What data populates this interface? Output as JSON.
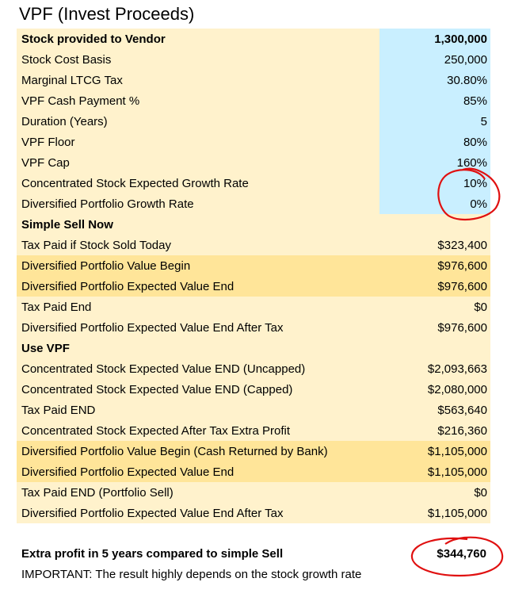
{
  "title": "VPF (Invest Proceeds)",
  "rows": [
    {
      "label": "Stock provided to Vendor",
      "value": "1,300,000",
      "style": "blue",
      "bold": true
    },
    {
      "label": "Stock Cost Basis",
      "value": "250,000",
      "style": "blue",
      "bold": false
    },
    {
      "label": "Marginal LTCG Tax",
      "value": "30.80%",
      "style": "blue",
      "bold": false
    },
    {
      "label": "VPF Cash Payment %",
      "value": "85%",
      "style": "blue",
      "bold": false
    },
    {
      "label": "Duration (Years)",
      "value": "5",
      "style": "blue",
      "bold": false
    },
    {
      "label": "VPF Floor",
      "value": "80%",
      "style": "blue",
      "bold": false
    },
    {
      "label": "VPF Cap",
      "value": "160%",
      "style": "blue",
      "bold": false
    },
    {
      "label": "Concentrated Stock Expected Growth Rate",
      "value": "10%",
      "style": "blue",
      "bold": false
    },
    {
      "label": "Diversified Portfolio Growth Rate",
      "value": "0%",
      "style": "blue",
      "bold": false
    },
    {
      "label": "Simple Sell Now",
      "value": "",
      "style": "cream",
      "bold": true
    },
    {
      "label": "Tax Paid if Stock Sold Today",
      "value": "$323,400",
      "style": "cream",
      "bold": false
    },
    {
      "label": "Diversified Portfolio Value Begin",
      "value": "$976,600",
      "style": "gold",
      "bold": false
    },
    {
      "label": "Diversified Portfolio Expected Value End",
      "value": "$976,600",
      "style": "gold",
      "bold": false
    },
    {
      "label": "Tax Paid End",
      "value": "$0",
      "style": "cream",
      "bold": false
    },
    {
      "label": "Diversified Portfolio Expected Value End After Tax",
      "value": "$976,600",
      "style": "cream",
      "bold": false
    },
    {
      "label": "Use VPF",
      "value": "",
      "style": "cream",
      "bold": true
    },
    {
      "label": "Concentrated Stock Expected Value END (Uncapped)",
      "value": "$2,093,663",
      "style": "cream",
      "bold": false
    },
    {
      "label": "Concentrated Stock Expected Value END (Capped)",
      "value": "$2,080,000",
      "style": "cream",
      "bold": false
    },
    {
      "label": "Tax Paid END",
      "value": "$563,640",
      "style": "cream",
      "bold": false
    },
    {
      "label": "Concentrated Stock Expected After Tax Extra Profit",
      "value": "$216,360",
      "style": "cream",
      "bold": false
    },
    {
      "label": "Diversified Portfolio Value Begin (Cash Returned by Bank)",
      "value": "$1,105,000",
      "style": "gold",
      "bold": false
    },
    {
      "label": "Diversified Portfolio Expected Value End",
      "value": "$1,105,000",
      "style": "gold",
      "bold": false
    },
    {
      "label": "Tax Paid END (Portfolio Sell)",
      "value": "$0",
      "style": "cream",
      "bold": false
    },
    {
      "label": "Diversified Portfolio Expected Value End After Tax",
      "value": "$1,105,000",
      "style": "cream",
      "bold": false
    }
  ],
  "summary": {
    "label": "Extra profit in 5 years compared to simple Sell",
    "value": "$344,760"
  },
  "note": "IMPORTANT: The result highly depends on the stock growth rate",
  "colors": {
    "input_cell": "#c9efff",
    "cream": "#fff2cc",
    "gold": "#ffe599",
    "annotation": "#e01010"
  }
}
